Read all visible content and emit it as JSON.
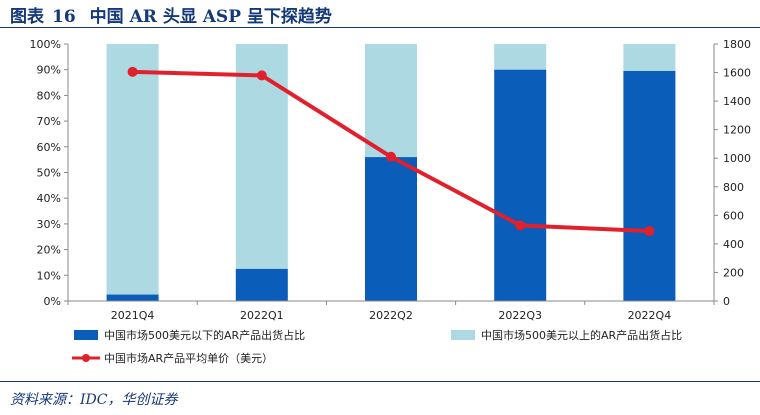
{
  "header": {
    "figure_label": "图表",
    "figure_number": "16",
    "title": "中国 AR 头显 ASP 呈下探趋势"
  },
  "source": "资料来源：IDC，华创证券",
  "colors": {
    "below500": "#0a5db8",
    "above500": "#add9e3",
    "asp_line": "#e2202b",
    "title": "#14387a"
  },
  "chart_data": {
    "type": "bar",
    "stacked": true,
    "categories": [
      "2021Q4",
      "2022Q1",
      "2022Q2",
      "2022Q3",
      "2022Q4"
    ],
    "series": [
      {
        "name": "中国市场500美元以下的AR产品出货占比",
        "type": "bar",
        "axis": "left",
        "values": [
          2.5,
          12.5,
          56,
          90,
          89.5
        ]
      },
      {
        "name": "中国市场500美元以上的AR产品出货占比",
        "type": "bar",
        "axis": "left",
        "values": [
          97.5,
          87.5,
          44,
          10,
          10.5
        ]
      },
      {
        "name": "中国市场AR产品平均单价（美元）",
        "type": "line",
        "axis": "right",
        "values": [
          1605,
          1580,
          1010,
          530,
          490
        ]
      }
    ],
    "y_left": {
      "ticks": [
        "0%",
        "10%",
        "20%",
        "30%",
        "40%",
        "50%",
        "60%",
        "70%",
        "80%",
        "90%",
        "100%"
      ],
      "range": [
        0,
        100
      ]
    },
    "y_right": {
      "ticks": [
        "0",
        "200",
        "400",
        "600",
        "800",
        "1000",
        "1200",
        "1400",
        "1600",
        "1800"
      ],
      "range": [
        0,
        1800
      ]
    },
    "grid": false,
    "legend_position": "bottom"
  }
}
